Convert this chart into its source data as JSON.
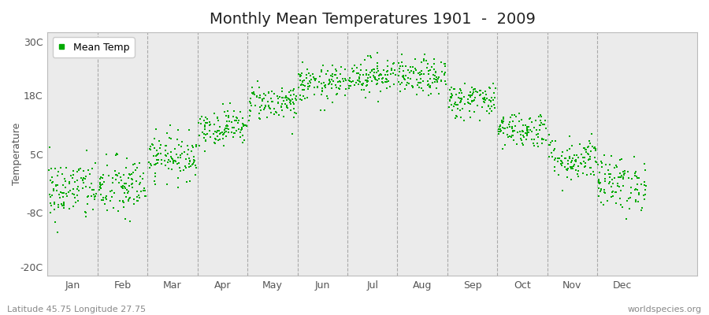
{
  "title": "Monthly Mean Temperatures 1901  -  2009",
  "ylabel": "Temperature",
  "yticks": [
    -20,
    -8,
    5,
    18,
    30
  ],
  "ytick_labels": [
    "-20C",
    "-8C",
    "5C",
    "18C",
    "30C"
  ],
  "ylim": [
    -22,
    32
  ],
  "xlim": [
    -0.5,
    12.5
  ],
  "months": [
    "Jan",
    "Feb",
    "Mar",
    "Apr",
    "May",
    "Jun",
    "Jul",
    "Aug",
    "Sep",
    "Oct",
    "Nov",
    "Dec"
  ],
  "month_centers": [
    0,
    1,
    2,
    3,
    4,
    5,
    6,
    7,
    8,
    9,
    10,
    11
  ],
  "mean_temps": [
    -3.0,
    -2.5,
    4.5,
    11.0,
    16.5,
    20.5,
    22.5,
    22.0,
    17.0,
    10.5,
    4.0,
    -1.5
  ],
  "std_temps": [
    3.5,
    3.5,
    2.5,
    2.0,
    2.0,
    2.0,
    2.0,
    2.0,
    2.0,
    2.0,
    2.5,
    3.0
  ],
  "n_years": 109,
  "scatter_color": "#00aa00",
  "marker_size": 2,
  "background_color": "#ebebeb",
  "legend_label": "Mean Temp",
  "bottom_left_text": "Latitude 45.75 Longitude 27.75",
  "bottom_right_text": "worldspecies.org",
  "title_fontsize": 14,
  "axis_fontsize": 9,
  "tick_fontsize": 9,
  "small_text_fontsize": 8,
  "dashed_line_color": "#999999",
  "dashed_line_positions": [
    -0.5,
    0.5,
    1.5,
    2.5,
    3.5,
    4.5,
    5.5,
    6.5,
    7.5,
    8.5,
    9.5,
    10.5,
    11.5
  ]
}
